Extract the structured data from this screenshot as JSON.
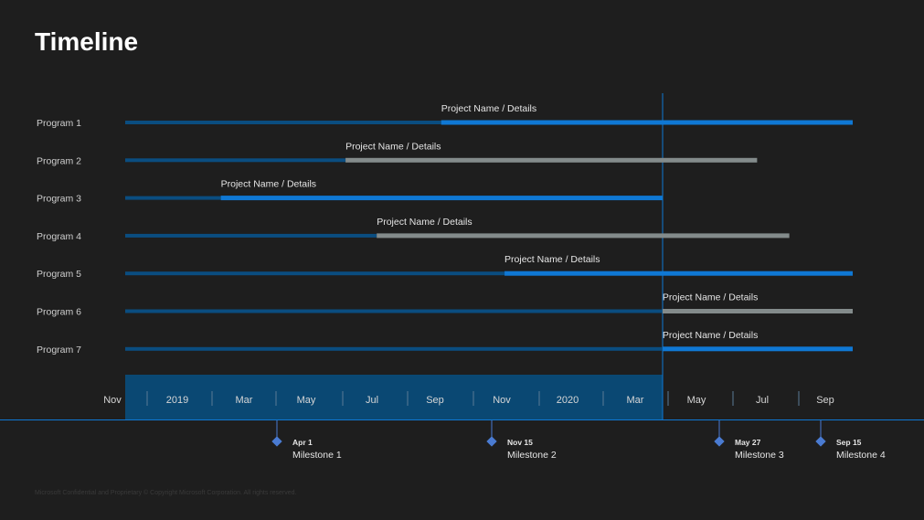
{
  "title": "Timeline",
  "footer": "Microsoft Confidential and Proprietary © Copyright Microsoft Corporation. All rights reserved.",
  "colors": {
    "background": "#1e1e1e",
    "progress": "#0a4d80",
    "active": "#0f78d4",
    "pending": "#838b8b",
    "band": "#0a4873",
    "today": "#0f78d4",
    "milestone": "#4a7bd2"
  },
  "axis": {
    "months": [
      "Nov",
      "2019",
      "Mar",
      "May",
      "Jul",
      "Sep",
      "Nov",
      "2020",
      "Mar",
      "May",
      "Jul",
      "Sep"
    ],
    "elapsed_through": "Mar 2020"
  },
  "rows": [
    {
      "label": "Program 1",
      "project": "Project Name / Details",
      "split": "Sep 2019",
      "end": "Oct 2020",
      "remaining": "active"
    },
    {
      "label": "Program 2",
      "project": "Project Name / Details",
      "split": "Jun 2019",
      "end": "Jul 2020",
      "remaining": "pending"
    },
    {
      "label": "Program 3",
      "project": "Project Name / Details",
      "split": "Feb 2019",
      "end": "Apr 2020",
      "remaining": "active"
    },
    {
      "label": "Program 4",
      "project": "Project Name / Details",
      "split": "Jul 2019",
      "end": "Aug 2020",
      "remaining": "pending"
    },
    {
      "label": "Program 5",
      "project": "Project Name / Details",
      "split": "Nov 2019",
      "end": "Oct 2020",
      "remaining": "active"
    },
    {
      "label": "Program 6",
      "project": "Project Name / Details",
      "split": "Apr 2020",
      "end": "Oct 2020",
      "remaining": "pending"
    },
    {
      "label": "Program 7",
      "project": "Project Name / Details",
      "split": "Apr 2020",
      "end": "Oct 2020",
      "remaining": "active"
    }
  ],
  "milestones": [
    {
      "date": "Apr 1",
      "name": "Milestone 1"
    },
    {
      "date": "Nov 15",
      "name": "Milestone 2"
    },
    {
      "date": "May 27",
      "name": "Milestone 3"
    },
    {
      "date": "Sep 15",
      "name": "Milestone 4"
    }
  ]
}
